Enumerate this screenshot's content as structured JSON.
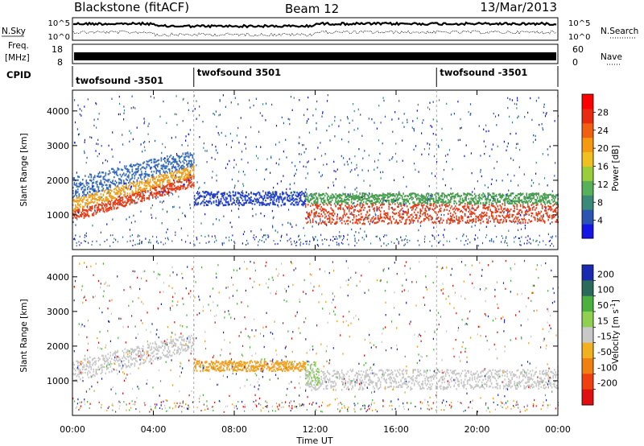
{
  "header": {
    "station": "Blackstone (fitACF)",
    "beam": "Beam 12",
    "date": "13/Mar/2013"
  },
  "strip_panels": {
    "nsky_label": "N.Sky",
    "nsearch_label": "N.Search",
    "nsky_ticks": [
      "10^5",
      "10^0"
    ],
    "nsearch_ticks": [
      "10^5",
      "10^0"
    ],
    "freq_label": "Freq.",
    "freq_unit": "[MHz]",
    "freq_ticks": [
      "18",
      "8"
    ],
    "nave_label": "Nave",
    "nave_ticks": [
      "60",
      "0"
    ],
    "cpid_label": "CPID",
    "cpid_segments": [
      {
        "label": "twofsound -3501",
        "start_hour": 0
      },
      {
        "label": "twofsound 3501",
        "start_hour": 6
      },
      {
        "label": "twofsound -3501",
        "start_hour": 18
      }
    ]
  },
  "chart_data": [
    {
      "type": "heatmap",
      "panel": "power",
      "ylabel": "Slant Range [km]",
      "xlabel": "",
      "xlim_hours": [
        0,
        24
      ],
      "ylim": [
        0,
        4600
      ],
      "yticks": [
        1000,
        2000,
        3000,
        4000
      ],
      "colorbar": {
        "label": "Power [dB]",
        "ticks": [
          4,
          8,
          12,
          16,
          20,
          24,
          28
        ],
        "colors": [
          "#1515e6",
          "#2a55b0",
          "#3a8a7a",
          "#58b058",
          "#9acd3a",
          "#f0c020",
          "#f59a10",
          "#f06010",
          "#e82a10",
          "#ff0000"
        ]
      },
      "bands": [
        {
          "t0": 0.0,
          "t1": 6.0,
          "r0": 850,
          "r1": 1150,
          "r0_end": 1850,
          "r1_end": 2150,
          "color": "#e8401a",
          "note_strength": "high"
        },
        {
          "t0": 0.0,
          "t1": 6.0,
          "r0": 1150,
          "r1": 1500,
          "r0_end": 2150,
          "r1_end": 2450,
          "color": "#f0a020"
        },
        {
          "t0": 0.0,
          "t1": 6.0,
          "r0": 1500,
          "r1": 2100,
          "r0_end": 2450,
          "r1_end": 2900,
          "color": "#3a6ec0"
        },
        {
          "t0": 6.0,
          "t1": 11.5,
          "r0": 1300,
          "r1": 1700,
          "r0_end": 1300,
          "r1_end": 1700,
          "color": "#1f3ec8"
        },
        {
          "t0": 11.5,
          "t1": 24.0,
          "r0": 750,
          "r1": 1350,
          "r0_end": 800,
          "r1_end": 1350,
          "color": "#e8401a"
        },
        {
          "t0": 11.5,
          "t1": 24.0,
          "r0": 1350,
          "r1": 1650,
          "r0_end": 1350,
          "r1_end": 1650,
          "color": "#4aa050"
        }
      ]
    },
    {
      "type": "heatmap",
      "panel": "velocity",
      "ylabel": "Slant Range [km]",
      "xlabel": "Time UT",
      "xlim_hours": [
        0,
        24
      ],
      "x_tick_labels": [
        "00:00",
        "04:00",
        "08:00",
        "12:00",
        "16:00",
        "20:00",
        "00:00"
      ],
      "ylim": [
        0,
        4600
      ],
      "yticks": [
        1000,
        2000,
        3000,
        4000
      ],
      "colorbar": {
        "label": "Velocity [m s^-1]",
        "ticks": [
          200,
          100,
          50,
          15,
          -15,
          -50,
          -100,
          -200
        ],
        "colors": [
          "#1a2ab0",
          "#2a6a5a",
          "#4ab040",
          "#90d050",
          "#c8c8c8",
          "#f0b020",
          "#f08010",
          "#f04010",
          "#e01010"
        ]
      },
      "bands": [
        {
          "t0": 0.0,
          "t1": 6.0,
          "r0": 1000,
          "r1": 1600,
          "r0_end": 1900,
          "r1_end": 2400,
          "color": "#c8c8c8"
        },
        {
          "t0": 6.0,
          "t1": 11.5,
          "r0": 1300,
          "r1": 1600,
          "r0_end": 1300,
          "r1_end": 1600,
          "color": "#f0a020"
        },
        {
          "t0": 11.5,
          "t1": 12.2,
          "r0": 900,
          "r1": 2000,
          "r0_end": 900,
          "r1_end": 1300,
          "color": "#7ad040"
        },
        {
          "t0": 11.5,
          "t1": 24.0,
          "r0": 750,
          "r1": 1350,
          "r0_end": 800,
          "r1_end": 1350,
          "color": "#c8c8c8"
        }
      ]
    }
  ]
}
